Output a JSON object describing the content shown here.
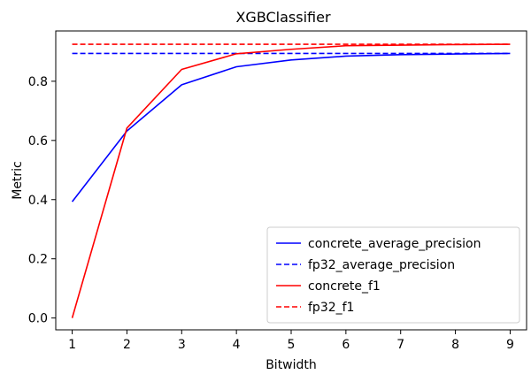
{
  "chart_data": {
    "type": "line",
    "title": "XGBClassifier",
    "xlabel": "Bitwidth",
    "ylabel": "Metric",
    "xlim": [
      0.7,
      9.3
    ],
    "ylim": [
      -0.04,
      0.97
    ],
    "xticks": [
      1,
      2,
      3,
      4,
      5,
      6,
      7,
      8,
      9
    ],
    "yticks": [
      0.0,
      0.2,
      0.4,
      0.6,
      0.8
    ],
    "ytick_labels": [
      "0.0",
      "0.2",
      "0.4",
      "0.6",
      "0.8"
    ],
    "grid": false,
    "legend_position": "lower-right",
    "x": [
      1,
      2,
      3,
      4,
      5,
      6,
      7,
      8,
      9
    ],
    "series": [
      {
        "name": "concrete_average_precision",
        "color": "#0000ff",
        "style": "solid",
        "values": [
          0.393,
          0.632,
          0.788,
          0.849,
          0.872,
          0.885,
          0.89,
          0.892,
          0.894
        ]
      },
      {
        "name": "fp32_average_precision",
        "color": "#0000ff",
        "style": "dashed",
        "values": [
          0.894,
          0.894,
          0.894,
          0.894,
          0.894,
          0.894,
          0.894,
          0.894,
          0.894
        ]
      },
      {
        "name": "concrete_f1",
        "color": "#ff0000",
        "style": "solid",
        "values": [
          0.0,
          0.642,
          0.84,
          0.893,
          0.908,
          0.92,
          0.922,
          0.924,
          0.925
        ]
      },
      {
        "name": "fp32_f1",
        "color": "#ff0000",
        "style": "dashed",
        "values": [
          0.925,
          0.925,
          0.925,
          0.925,
          0.925,
          0.925,
          0.925,
          0.925,
          0.925
        ]
      }
    ]
  }
}
